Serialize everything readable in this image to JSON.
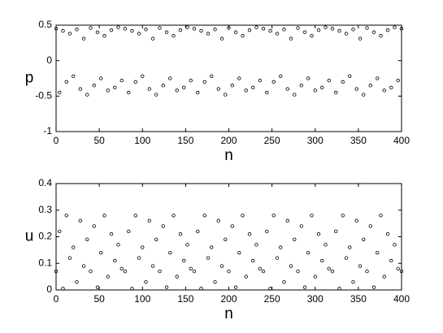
{
  "chart_data": [
    {
      "type": "scatter",
      "ylabel": "p",
      "xlabel": "n",
      "color": "#000000",
      "xlim": [
        0,
        400
      ],
      "xticks": [
        0,
        50,
        100,
        150,
        200,
        250,
        300,
        350,
        400
      ],
      "ylim": [
        -1,
        0.5
      ],
      "yticks": [
        -1,
        -0.5,
        0,
        0.5
      ],
      "x": [
        0,
        4,
        8,
        12,
        16,
        20,
        24,
        28,
        32,
        36,
        40,
        44,
        48,
        52,
        56,
        60,
        64,
        68,
        72,
        76,
        80,
        84,
        88,
        92,
        96,
        100,
        104,
        108,
        112,
        116,
        120,
        124,
        128,
        132,
        136,
        140,
        144,
        148,
        152,
        156,
        160,
        164,
        168,
        172,
        176,
        180,
        184,
        188,
        192,
        196,
        200,
        204,
        208,
        212,
        216,
        220,
        224,
        228,
        232,
        236,
        240,
        244,
        248,
        252,
        256,
        260,
        264,
        268,
        272,
        276,
        280,
        284,
        288,
        292,
        296,
        300,
        304,
        308,
        312,
        316,
        320,
        324,
        328,
        332,
        336,
        340,
        344,
        348,
        352,
        356,
        360,
        364,
        368,
        372,
        376,
        380,
        384,
        388,
        392,
        396,
        400
      ],
      "values": [
        0.45,
        -0.45,
        0.42,
        -0.3,
        0.38,
        -0.22,
        0.44,
        -0.4,
        0.31,
        -0.48,
        0.46,
        -0.35,
        0.4,
        -0.25,
        0.35,
        -0.42,
        0.43,
        -0.38,
        0.47,
        -0.28,
        0.45,
        -0.45,
        0.42,
        -0.3,
        0.38,
        -0.22,
        0.44,
        -0.4,
        0.31,
        -0.48,
        0.46,
        -0.35,
        0.4,
        -0.25,
        0.35,
        -0.42,
        0.43,
        -0.38,
        0.47,
        -0.28,
        0.45,
        -0.45,
        0.42,
        -0.3,
        0.38,
        -0.22,
        0.44,
        -0.4,
        0.31,
        -0.48,
        0.46,
        -0.35,
        0.4,
        -0.25,
        0.35,
        -0.42,
        0.43,
        -0.38,
        0.47,
        -0.28,
        0.45,
        -0.45,
        0.42,
        -0.3,
        0.38,
        -0.22,
        0.44,
        -0.4,
        0.31,
        -0.48,
        0.46,
        -0.35,
        0.4,
        -0.25,
        0.35,
        -0.42,
        0.43,
        -0.38,
        0.47,
        -0.28,
        0.45,
        -0.45,
        0.42,
        -0.3,
        0.38,
        -0.22,
        0.44,
        -0.4,
        0.31,
        -0.48,
        0.46,
        -0.35,
        0.4,
        -0.25,
        0.35,
        -0.42,
        0.43,
        -0.38,
        0.47,
        -0.28,
        0.45
      ]
    },
    {
      "type": "scatter",
      "ylabel": "u",
      "xlabel": "n",
      "color": "#000000",
      "xlim": [
        0,
        400
      ],
      "xticks": [
        0,
        50,
        100,
        150,
        200,
        250,
        300,
        350,
        400
      ],
      "ylim": [
        0,
        0.4
      ],
      "yticks": [
        0,
        0.1,
        0.2,
        0.3,
        0.4
      ],
      "x": [
        0,
        4,
        8,
        12,
        16,
        20,
        24,
        28,
        32,
        36,
        40,
        44,
        48,
        52,
        56,
        60,
        64,
        68,
        72,
        76,
        80,
        84,
        88,
        92,
        96,
        100,
        104,
        108,
        112,
        116,
        120,
        124,
        128,
        132,
        136,
        140,
        144,
        148,
        152,
        156,
        160,
        164,
        168,
        172,
        176,
        180,
        184,
        188,
        192,
        196,
        200,
        204,
        208,
        212,
        216,
        220,
        224,
        228,
        232,
        236,
        240,
        244,
        248,
        252,
        256,
        260,
        264,
        268,
        272,
        276,
        280,
        284,
        288,
        292,
        296,
        300,
        304,
        308,
        312,
        316,
        320,
        324,
        328,
        332,
        336,
        340,
        344,
        348,
        352,
        356,
        360,
        364,
        368,
        372,
        376,
        380,
        384,
        388,
        392,
        396,
        400
      ],
      "values": [
        0.07,
        0.22,
        0.005,
        0.28,
        0.12,
        0.16,
        0.03,
        0.26,
        0.09,
        0.19,
        0.07,
        0.24,
        0.01,
        0.14,
        0.28,
        0.05,
        0.21,
        0.11,
        0.17,
        0.08,
        0.07,
        0.22,
        0.005,
        0.28,
        0.12,
        0.16,
        0.03,
        0.26,
        0.09,
        0.19,
        0.07,
        0.24,
        0.01,
        0.14,
        0.28,
        0.05,
        0.21,
        0.11,
        0.17,
        0.08,
        0.07,
        0.22,
        0.005,
        0.28,
        0.12,
        0.16,
        0.03,
        0.26,
        0.09,
        0.19,
        0.07,
        0.24,
        0.01,
        0.14,
        0.28,
        0.05,
        0.21,
        0.11,
        0.17,
        0.08,
        0.07,
        0.22,
        0.005,
        0.28,
        0.12,
        0.16,
        0.03,
        0.26,
        0.09,
        0.19,
        0.07,
        0.24,
        0.01,
        0.14,
        0.28,
        0.05,
        0.21,
        0.11,
        0.17,
        0.08,
        0.07,
        0.22,
        0.005,
        0.28,
        0.12,
        0.16,
        0.03,
        0.26,
        0.09,
        0.19,
        0.07,
        0.24,
        0.01,
        0.14,
        0.28,
        0.05,
        0.21,
        0.11,
        0.17,
        0.08,
        0.07
      ]
    }
  ]
}
